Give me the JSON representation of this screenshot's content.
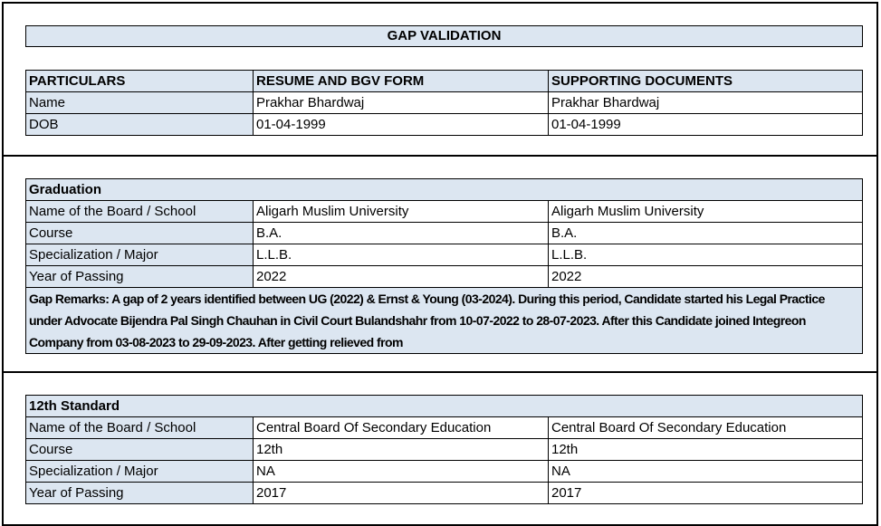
{
  "title": "GAP VALIDATION",
  "headers": [
    "PARTICULARS",
    "RESUME AND BGV FORM",
    "SUPPORTING DOCUMENTS"
  ],
  "personal": [
    {
      "label": "Name",
      "resume": "Prakhar Bhardwaj",
      "docs": "Prakhar Bhardwaj"
    },
    {
      "label": "DOB",
      "resume": "01-04-1999",
      "docs": "01-04-1999"
    }
  ],
  "graduation": {
    "heading": "Graduation",
    "rows": [
      {
        "label": "Name of the Board / School",
        "resume": "Aligarh Muslim University",
        "docs": "Aligarh Muslim University"
      },
      {
        "label": "Course",
        "resume": "B.A.",
        "docs": "B.A."
      },
      {
        "label": "Specialization / Major",
        "resume": "L.L.B.",
        "docs": "L.L.B."
      },
      {
        "label": "Year of Passing",
        "resume": "2022",
        "docs": "2022"
      }
    ],
    "remarks": "Gap Remarks: A gap of 2 years identified between UG (2022) & Ernst & Young (03-2024). During this period, Candidate started his Legal Practice under Advocate Bijendra Pal Singh Chauhan in Civil Court Bulandshahr from 10-07-2022 to 28-07-2023. After this Candidate joined Integreon Company from 03-08-2023 to 29-09-2023. After getting relieved from"
  },
  "twelfth": {
    "heading": "12th Standard",
    "rows": [
      {
        "label": "Name of the Board / School",
        "resume": "Central Board Of Secondary Education",
        "docs": "Central Board Of Secondary Education"
      },
      {
        "label": "Course",
        "resume": "12th",
        "docs": "12th"
      },
      {
        "label": "Specialization / Major",
        "resume": "NA",
        "docs": "NA"
      },
      {
        "label": "Year of Passing",
        "resume": "2017",
        "docs": "2017"
      }
    ]
  }
}
